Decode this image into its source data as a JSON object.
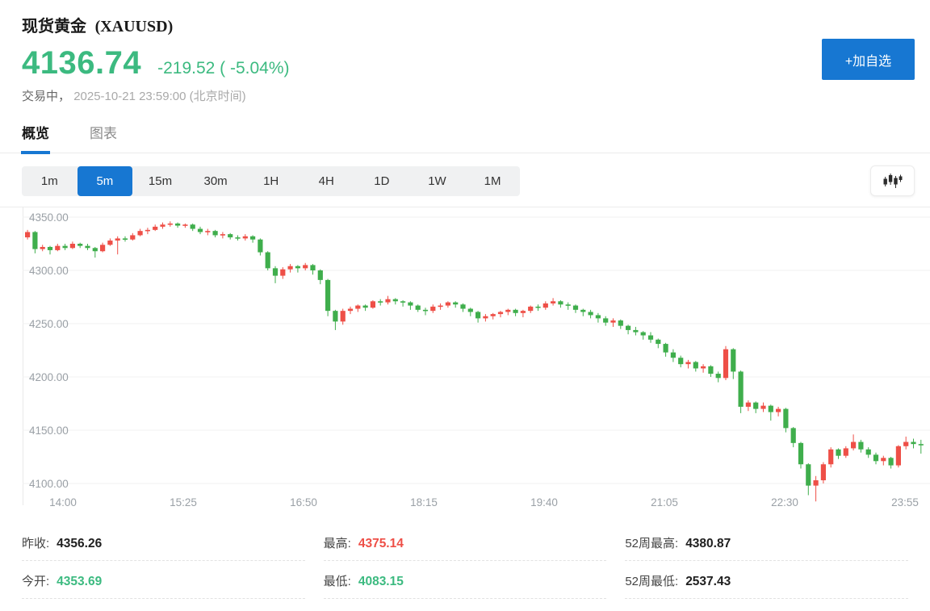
{
  "theme": {
    "accent_blue": "#1777d2",
    "price_green": "#3cba80",
    "up_red": "#ee4f47",
    "down_green": "#3fae4c"
  },
  "header": {
    "title": "现货黄金",
    "symbol": "(XAUUSD)",
    "price": "4136.74",
    "change": "-219.52 ( -5.04%)",
    "status": "交易中，",
    "timestamp": "2025-10-21 23:59:00 (北京时间)",
    "add_watchlist_label": "+加自选"
  },
  "tabs": [
    {
      "label": "概览",
      "active": true
    },
    {
      "label": "图表",
      "active": false
    }
  ],
  "toolbar": {
    "timeframes": [
      {
        "label": "1m",
        "active": false
      },
      {
        "label": "5m",
        "active": true
      },
      {
        "label": "15m",
        "active": false
      },
      {
        "label": "30m",
        "active": false
      },
      {
        "label": "1H",
        "active": false
      },
      {
        "label": "4H",
        "active": false
      },
      {
        "label": "1D",
        "active": false
      },
      {
        "label": "1W",
        "active": false
      },
      {
        "label": "1M",
        "active": false
      }
    ],
    "chart_style_icon": "candlestick-icon"
  },
  "chart_data": {
    "type": "candlestick",
    "title": "现货黄金 (XAUUSD) 5分钟K线",
    "interval": "5m",
    "start_time": "14:00",
    "interval_minutes": 5,
    "x_labels": [
      "14:00",
      "15:25",
      "16:50",
      "18:15",
      "19:40",
      "21:05",
      "22:30",
      "23:55"
    ],
    "y_ticks": [
      4350,
      4300,
      4250,
      4200,
      4150,
      4100
    ],
    "y_tick_labels": [
      "4350.00",
      "4300.00",
      "4250.00",
      "4200.00",
      "4150.00",
      "4100.00"
    ],
    "ylim": [
      4083,
      4360
    ],
    "grid": true,
    "up_color": "#ee4f47",
    "down_color": "#3fae4c",
    "candles": [
      [
        4331,
        4338,
        4329,
        4336
      ],
      [
        4336,
        4337,
        4316,
        4320
      ],
      [
        4320,
        4324,
        4318,
        4322
      ],
      [
        4322,
        4323,
        4315,
        4319
      ],
      [
        4319,
        4325,
        4318,
        4323
      ],
      [
        4323,
        4325,
        4319,
        4321
      ],
      [
        4321,
        4327,
        4320,
        4325
      ],
      [
        4325,
        4326,
        4321,
        4323
      ],
      [
        4323,
        4325,
        4319,
        4321
      ],
      [
        4321,
        4322,
        4312,
        4318
      ],
      [
        4318,
        4326,
        4317,
        4324
      ],
      [
        4324,
        4330,
        4323,
        4328
      ],
      [
        4328,
        4332,
        4315,
        4330
      ],
      [
        4330,
        4332,
        4327,
        4329
      ],
      [
        4329,
        4335,
        4328,
        4333
      ],
      [
        4333,
        4339,
        4332,
        4337
      ],
      [
        4337,
        4340,
        4334,
        4338
      ],
      [
        4338,
        4343,
        4337,
        4341
      ],
      [
        4341,
        4345,
        4339,
        4343
      ],
      [
        4343,
        4346,
        4341,
        4344
      ],
      [
        4344,
        4345,
        4340,
        4342
      ],
      [
        4342,
        4344,
        4340,
        4343
      ],
      [
        4343,
        4344,
        4337,
        4339
      ],
      [
        4339,
        4341,
        4334,
        4336
      ],
      [
        4336,
        4339,
        4333,
        4337
      ],
      [
        4337,
        4338,
        4331,
        4333
      ],
      [
        4333,
        4336,
        4330,
        4334
      ],
      [
        4334,
        4335,
        4329,
        4331
      ],
      [
        4331,
        4333,
        4328,
        4330
      ],
      [
        4330,
        4334,
        4328,
        4332
      ],
      [
        4332,
        4333,
        4326,
        4329
      ],
      [
        4329,
        4330,
        4314,
        4317
      ],
      [
        4317,
        4318,
        4300,
        4302
      ],
      [
        4302,
        4304,
        4288,
        4295
      ],
      [
        4295,
        4303,
        4292,
        4301
      ],
      [
        4301,
        4306,
        4298,
        4304
      ],
      [
        4304,
        4305,
        4298,
        4302
      ],
      [
        4302,
        4307,
        4300,
        4305
      ],
      [
        4305,
        4306,
        4296,
        4300
      ],
      [
        4300,
        4301,
        4287,
        4291
      ],
      [
        4291,
        4292,
        4257,
        4262
      ],
      [
        4262,
        4263,
        4244,
        4252
      ],
      [
        4252,
        4264,
        4249,
        4262
      ],
      [
        4262,
        4266,
        4259,
        4264
      ],
      [
        4264,
        4268,
        4261,
        4267
      ],
      [
        4267,
        4268,
        4262,
        4265
      ],
      [
        4265,
        4272,
        4264,
        4271
      ],
      [
        4271,
        4273,
        4267,
        4270
      ],
      [
        4270,
        4276,
        4268,
        4273
      ],
      [
        4273,
        4274,
        4268,
        4271
      ],
      [
        4271,
        4272,
        4266,
        4270
      ],
      [
        4270,
        4271,
        4263,
        4267
      ],
      [
        4267,
        4268,
        4261,
        4263
      ],
      [
        4263,
        4265,
        4258,
        4262
      ],
      [
        4262,
        4268,
        4260,
        4266
      ],
      [
        4266,
        4269,
        4263,
        4267
      ],
      [
        4267,
        4271,
        4265,
        4270
      ],
      [
        4270,
        4271,
        4265,
        4268
      ],
      [
        4268,
        4269,
        4261,
        4264
      ],
      [
        4264,
        4265,
        4257,
        4261
      ],
      [
        4261,
        4262,
        4251,
        4255
      ],
      [
        4255,
        4259,
        4252,
        4257
      ],
      [
        4257,
        4260,
        4254,
        4259
      ],
      [
        4259,
        4262,
        4256,
        4261
      ],
      [
        4261,
        4264,
        4258,
        4263
      ],
      [
        4263,
        4264,
        4257,
        4260
      ],
      [
        4260,
        4263,
        4256,
        4262
      ],
      [
        4262,
        4267,
        4260,
        4266
      ],
      [
        4266,
        4268,
        4262,
        4265
      ],
      [
        4265,
        4271,
        4263,
        4269
      ],
      [
        4269,
        4274,
        4267,
        4271
      ],
      [
        4271,
        4272,
        4265,
        4268
      ],
      [
        4268,
        4270,
        4263,
        4267
      ],
      [
        4267,
        4268,
        4260,
        4263
      ],
      [
        4263,
        4264,
        4257,
        4261
      ],
      [
        4261,
        4263,
        4255,
        4258
      ],
      [
        4258,
        4260,
        4251,
        4255
      ],
      [
        4255,
        4257,
        4248,
        4251
      ],
      [
        4251,
        4255,
        4247,
        4253
      ],
      [
        4253,
        4254,
        4245,
        4248
      ],
      [
        4248,
        4249,
        4240,
        4244
      ],
      [
        4244,
        4247,
        4239,
        4242
      ],
      [
        4242,
        4243,
        4235,
        4239
      ],
      [
        4239,
        4242,
        4232,
        4235
      ],
      [
        4235,
        4236,
        4227,
        4231
      ],
      [
        4231,
        4232,
        4219,
        4223
      ],
      [
        4223,
        4226,
        4214,
        4218
      ],
      [
        4218,
        4220,
        4209,
        4212
      ],
      [
        4212,
        4216,
        4208,
        4214
      ],
      [
        4214,
        4215,
        4205,
        4208
      ],
      [
        4208,
        4212,
        4204,
        4210
      ],
      [
        4210,
        4211,
        4200,
        4203
      ],
      [
        4203,
        4205,
        4195,
        4199
      ],
      [
        4199,
        4229,
        4197,
        4226
      ],
      [
        4226,
        4227,
        4198,
        4205
      ],
      [
        4205,
        4206,
        4166,
        4172
      ],
      [
        4172,
        4178,
        4168,
        4176
      ],
      [
        4176,
        4177,
        4166,
        4170
      ],
      [
        4170,
        4176,
        4167,
        4173
      ],
      [
        4173,
        4174,
        4159,
        4167
      ],
      [
        4167,
        4172,
        4163,
        4170
      ],
      [
        4170,
        4171,
        4148,
        4152
      ],
      [
        4152,
        4153,
        4134,
        4138
      ],
      [
        4138,
        4139,
        4114,
        4118
      ],
      [
        4118,
        4119,
        4089,
        4098
      ],
      [
        4098,
        4107,
        4083.15,
        4103
      ],
      [
        4103,
        4120,
        4100,
        4118
      ],
      [
        4118,
        4134,
        4115,
        4132
      ],
      [
        4132,
        4133,
        4123,
        4126
      ],
      [
        4126,
        4135,
        4124,
        4133
      ],
      [
        4133,
        4146,
        4131,
        4139
      ],
      [
        4139,
        4141,
        4129,
        4132
      ],
      [
        4132,
        4134,
        4124,
        4127
      ],
      [
        4127,
        4129,
        4118,
        4121
      ],
      [
        4121,
        4126,
        4117,
        4124
      ],
      [
        4124,
        4125,
        4114,
        4117
      ],
      [
        4117,
        4136,
        4115,
        4135
      ],
      [
        4135,
        4144,
        4132,
        4139
      ],
      [
        4139,
        4142,
        4133,
        4137
      ],
      [
        4137,
        4141,
        4128,
        4136.74
      ]
    ]
  },
  "stats": [
    {
      "label": "昨收:",
      "value": "4356.26",
      "color": "dark"
    },
    {
      "label": "最高:",
      "value": "4375.14",
      "color": "red"
    },
    {
      "label": "52周最高:",
      "value": "4380.87",
      "color": "dark"
    },
    {
      "label": "今开:",
      "value": "4353.69",
      "color": "green"
    },
    {
      "label": "最低:",
      "value": "4083.15",
      "color": "green"
    },
    {
      "label": "52周最低:",
      "value": "2537.43",
      "color": "dark"
    }
  ]
}
